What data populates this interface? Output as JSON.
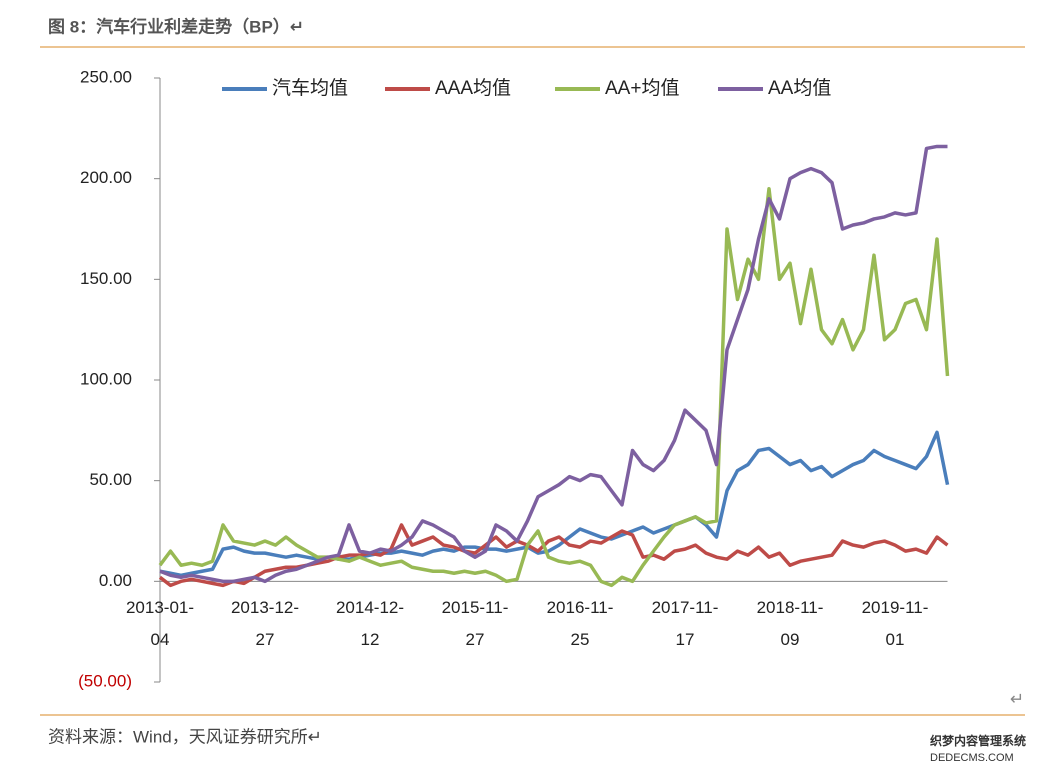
{
  "header": {
    "title": "图 8：汽车行业利差走势（BP）↵"
  },
  "chart_data": {
    "type": "line",
    "categories": [
      "2013-01-04",
      null,
      null,
      null,
      null,
      null,
      null,
      null,
      null,
      null,
      "2013-12-27",
      null,
      null,
      null,
      null,
      null,
      null,
      null,
      null,
      null,
      "2014-12-12",
      null,
      null,
      null,
      null,
      null,
      null,
      null,
      null,
      null,
      "2015-11-27",
      null,
      null,
      null,
      null,
      null,
      null,
      null,
      null,
      null,
      "2016-11-25",
      null,
      null,
      null,
      null,
      null,
      null,
      null,
      null,
      null,
      "2017-11-17",
      null,
      null,
      null,
      null,
      null,
      null,
      null,
      null,
      null,
      "2018-11-09",
      null,
      null,
      null,
      null,
      null,
      null,
      null,
      null,
      null,
      "2019-11-01",
      null,
      null,
      null,
      null,
      null
    ],
    "series": [
      {
        "name": "汽车均值",
        "color": "#4a7ebb",
        "values": [
          5,
          4,
          3,
          4,
          5,
          6,
          16,
          17,
          15,
          14,
          14,
          13,
          12,
          13,
          12,
          11,
          12,
          11,
          11,
          12,
          13,
          14,
          14,
          15,
          14,
          13,
          15,
          16,
          15,
          17,
          17,
          16,
          16,
          15,
          16,
          17,
          14,
          15,
          18,
          22,
          26,
          24,
          22,
          21,
          23,
          25,
          27,
          24,
          26,
          28,
          30,
          32,
          28,
          22,
          45,
          55,
          58,
          65,
          66,
          62,
          58,
          60,
          55,
          57,
          52,
          55,
          58,
          60,
          65,
          62,
          60,
          58,
          56,
          62,
          74,
          48
        ]
      },
      {
        "name": "AAA均值",
        "color": "#be4b48",
        "values": [
          2,
          -2,
          0,
          1,
          0,
          -1,
          -2,
          0,
          -1,
          2,
          5,
          6,
          7,
          7,
          8,
          9,
          10,
          12,
          13,
          13,
          14,
          13,
          16,
          28,
          18,
          20,
          22,
          18,
          17,
          15,
          14,
          18,
          22,
          17,
          20,
          18,
          15,
          20,
          22,
          18,
          17,
          20,
          19,
          22,
          25,
          23,
          12,
          13,
          11,
          15,
          16,
          18,
          14,
          12,
          11,
          15,
          13,
          17,
          12,
          14,
          8,
          10,
          11,
          12,
          13,
          20,
          18,
          17,
          19,
          20,
          18,
          15,
          16,
          14,
          22,
          18
        ]
      },
      {
        "name": "AA+均值",
        "color": "#98b954",
        "values": [
          8,
          15,
          8,
          9,
          8,
          10,
          28,
          20,
          19,
          18,
          20,
          18,
          22,
          18,
          15,
          12,
          12,
          11,
          10,
          12,
          10,
          8,
          9,
          10,
          7,
          6,
          5,
          5,
          4,
          5,
          4,
          5,
          3,
          0,
          1,
          18,
          25,
          12,
          10,
          9,
          10,
          8,
          0,
          -2,
          2,
          0,
          8,
          15,
          22,
          28,
          30,
          32,
          29,
          30,
          175,
          140,
          160,
          150,
          195,
          150,
          158,
          128,
          155,
          125,
          118,
          130,
          115,
          125,
          162,
          120,
          125,
          138,
          140,
          125,
          170,
          102
        ]
      },
      {
        "name": "AA均值",
        "color": "#7d60a0",
        "values": [
          5,
          3,
          2,
          3,
          2,
          1,
          0,
          0,
          1,
          2,
          0,
          3,
          5,
          6,
          8,
          10,
          12,
          13,
          28,
          15,
          14,
          16,
          15,
          18,
          22,
          30,
          28,
          25,
          22,
          15,
          12,
          15,
          28,
          25,
          20,
          30,
          42,
          45,
          48,
          52,
          50,
          53,
          52,
          45,
          38,
          65,
          58,
          55,
          60,
          70,
          85,
          80,
          75,
          58,
          115,
          130,
          145,
          170,
          190,
          180,
          200,
          203,
          205,
          203,
          198,
          175,
          177,
          178,
          180,
          181,
          183,
          182,
          183,
          215,
          216,
          216
        ]
      }
    ],
    "ylim": [
      -50,
      250
    ],
    "yticks": [
      {
        "value": -50,
        "label": "(50.00)"
      },
      {
        "value": 0,
        "label": "0.00"
      },
      {
        "value": 50,
        "label": "50.00"
      },
      {
        "value": 100,
        "label": "100.00"
      },
      {
        "value": 150,
        "label": "150.00"
      },
      {
        "value": 200,
        "label": "200.00"
      },
      {
        "value": 250,
        "label": "250.00"
      }
    ],
    "negative_tick_color": "#c00000",
    "grid": false,
    "legend": "top"
  },
  "footer": {
    "source": "资料来源：Wind，天风证券研究所↵",
    "mark": "↵"
  },
  "watermark": {
    "line1": "织梦内容管理系统",
    "line2": "DEDECMS.COM"
  }
}
